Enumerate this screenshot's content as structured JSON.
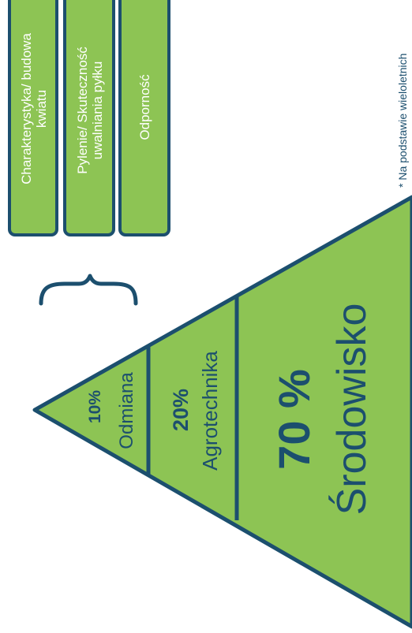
{
  "pyramid": {
    "levels": [
      {
        "percent": "10%",
        "label": "Odmiana"
      },
      {
        "percent": "20%",
        "label": "Agrotechnika"
      },
      {
        "percent": "70 %",
        "label": "Środowisko"
      }
    ]
  },
  "boxes": [
    {
      "lines": [
        "Charakterystyka/ budowa",
        "kwiatu"
      ]
    },
    {
      "lines": [
        "Pylenie/ Skuteczność",
        "uwalniania pyłku"
      ]
    },
    {
      "lines": [
        "Odporność"
      ]
    }
  ],
  "footnote": "* Na podstawie wieloletnich",
  "colors": {
    "fill": "#8dc454",
    "stroke": "#1c4f6e",
    "text": "#1c4f6e",
    "box_text": "#ffffff"
  }
}
